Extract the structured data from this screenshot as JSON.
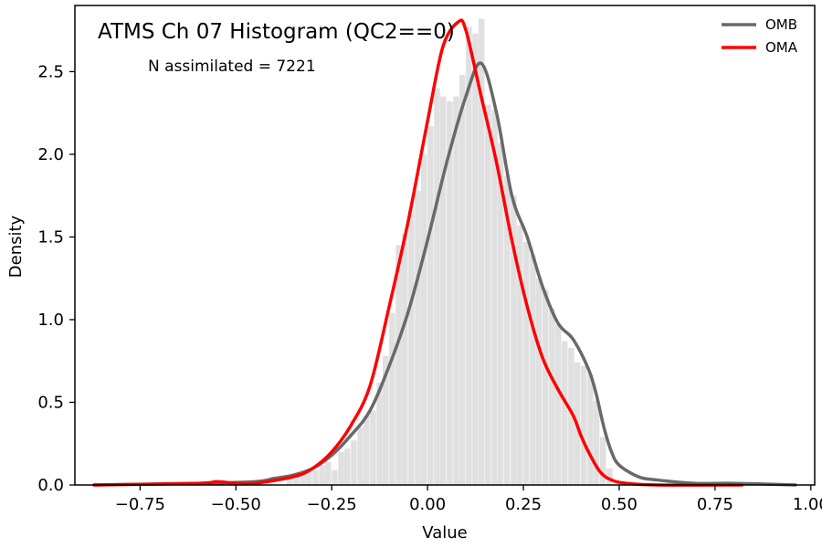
{
  "chart_data": {
    "type": "histogram_with_density_lines",
    "title": "ATMS Ch 07 Histogram (QC2==0)",
    "annotation": "N assimilated = 7221",
    "xlabel": "Value",
    "ylabel": "Density",
    "xlim": [
      -0.92,
      1.01
    ],
    "ylim": [
      0,
      2.9
    ],
    "xticks": [
      -0.75,
      -0.5,
      -0.25,
      0.0,
      0.25,
      0.5,
      0.75,
      1.0
    ],
    "xtick_labels": [
      "−0.75",
      "−0.50",
      "−0.25",
      "0.00",
      "0.25",
      "0.50",
      "0.75",
      "1.00"
    ],
    "yticks": [
      0.0,
      0.5,
      1.0,
      1.5,
      2.0,
      2.5
    ],
    "ytick_labels": [
      "0.0",
      "0.5",
      "1.0",
      "1.5",
      "2.0",
      "2.5"
    ],
    "grid": false,
    "legend_position": "top-right",
    "colors": {
      "histogram": "#e0e0e0",
      "omb": "#696969",
      "oma": "#ff0000"
    },
    "histogram": {
      "bin_width": 0.0167,
      "bins_x": [
        -0.367,
        -0.35,
        -0.333,
        -0.317,
        -0.3,
        -0.283,
        -0.267,
        -0.25,
        -0.233,
        -0.217,
        -0.2,
        -0.183,
        -0.167,
        -0.15,
        -0.133,
        -0.117,
        -0.1,
        -0.083,
        -0.067,
        -0.05,
        -0.033,
        -0.017,
        0.0,
        0.017,
        0.033,
        0.05,
        0.067,
        0.083,
        0.1,
        0.117,
        0.133,
        0.15,
        0.167,
        0.183,
        0.2,
        0.217,
        0.233,
        0.25,
        0.267,
        0.283,
        0.3,
        0.317,
        0.333,
        0.35,
        0.367,
        0.383,
        0.4,
        0.417,
        0.433,
        0.45,
        0.467
      ],
      "density": [
        0.04,
        0.06,
        0.07,
        0.08,
        0.09,
        0.12,
        0.14,
        0.09,
        0.2,
        0.22,
        0.27,
        0.35,
        0.42,
        0.45,
        0.62,
        0.78,
        1.04,
        1.45,
        1.52,
        1.67,
        1.78,
        2.0,
        2.17,
        2.4,
        2.35,
        2.32,
        2.35,
        2.48,
        2.77,
        2.73,
        2.82,
        2.3,
        2.27,
        2.07,
        1.87,
        1.75,
        1.57,
        1.47,
        1.39,
        1.25,
        1.18,
        1.07,
        0.97,
        0.87,
        0.83,
        0.74,
        0.72,
        0.67,
        0.51,
        0.29,
        0.1
      ]
    },
    "series": [
      {
        "name": "OMB",
        "x": [
          -0.87,
          -0.6,
          -0.45,
          -0.4,
          -0.35,
          -0.3,
          -0.25,
          -0.2,
          -0.15,
          -0.1,
          -0.05,
          0.0,
          0.05,
          0.1,
          0.14,
          0.18,
          0.22,
          0.26,
          0.3,
          0.34,
          0.38,
          0.42,
          0.44,
          0.46,
          0.48,
          0.5,
          0.55,
          0.6,
          0.7,
          0.8,
          0.96
        ],
        "y": [
          0.0,
          0.01,
          0.02,
          0.04,
          0.06,
          0.1,
          0.18,
          0.3,
          0.45,
          0.72,
          1.05,
          1.48,
          1.95,
          2.35,
          2.55,
          2.25,
          1.75,
          1.5,
          1.2,
          0.98,
          0.88,
          0.7,
          0.55,
          0.35,
          0.2,
          0.12,
          0.05,
          0.03,
          0.01,
          0.01,
          0.0
        ]
      },
      {
        "name": "OMA",
        "x": [
          -0.87,
          -0.6,
          -0.55,
          -0.5,
          -0.45,
          -0.35,
          -0.3,
          -0.25,
          -0.2,
          -0.15,
          -0.1,
          -0.05,
          0.0,
          0.04,
          0.08,
          0.1,
          0.14,
          0.18,
          0.22,
          0.26,
          0.3,
          0.34,
          0.38,
          0.4,
          0.42,
          0.45,
          0.48,
          0.52,
          0.6,
          0.82
        ],
        "y": [
          0.0,
          0.01,
          0.02,
          0.01,
          0.01,
          0.05,
          0.1,
          0.2,
          0.36,
          0.6,
          1.08,
          1.6,
          2.2,
          2.65,
          2.8,
          2.75,
          2.35,
          1.95,
          1.48,
          1.08,
          0.77,
          0.58,
          0.42,
          0.3,
          0.2,
          0.08,
          0.03,
          0.01,
          0.0,
          0.0
        ]
      }
    ]
  }
}
